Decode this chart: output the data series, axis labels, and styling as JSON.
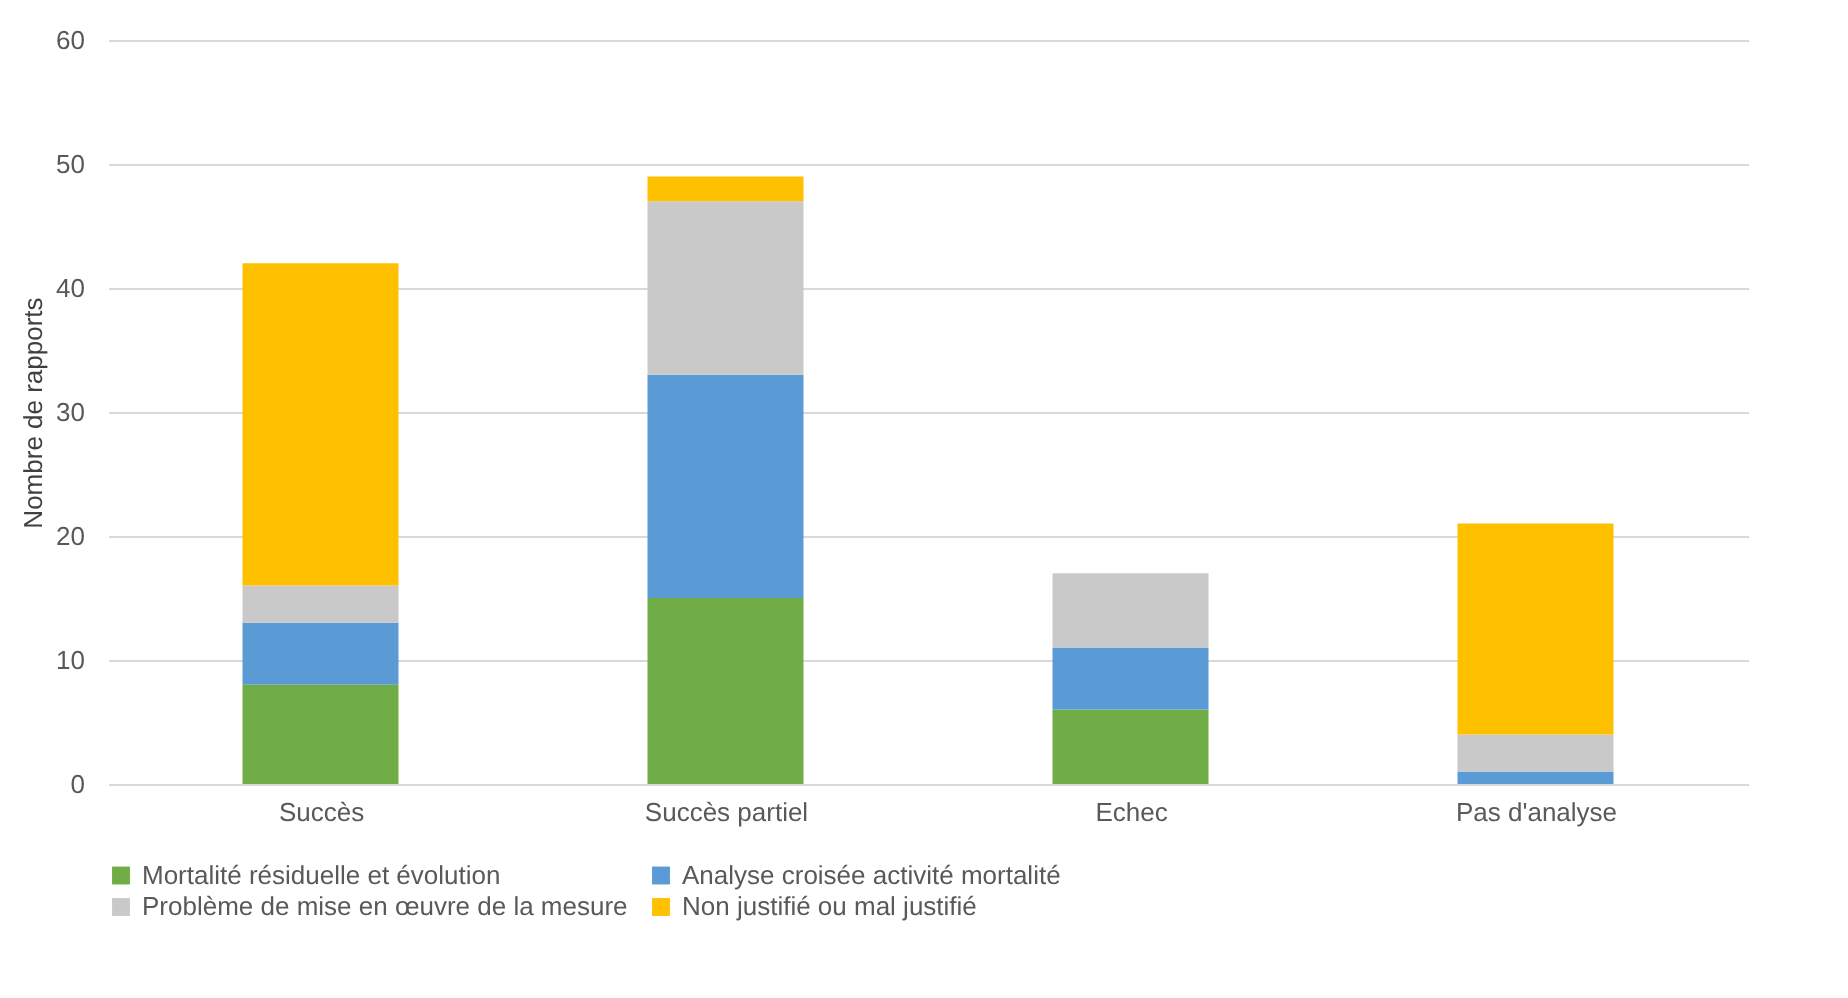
{
  "chart_data": {
    "type": "bar",
    "stacked": true,
    "ylabel": "Nombre de rapports",
    "categories": [
      "Succès",
      "Succès partiel",
      "Echec",
      "Pas d'analyse"
    ],
    "series": [
      {
        "name": "Mortalité résiduelle et évolution",
        "color": "#70ad47",
        "values": [
          8,
          15,
          6,
          0
        ]
      },
      {
        "name": "Analyse croisée activité mortalité",
        "color": "#5b9bd5",
        "values": [
          5,
          18,
          5,
          1
        ]
      },
      {
        "name": "Problème de mise en œuvre de la mesure",
        "color": "#c9c9c9",
        "values": [
          3,
          14,
          6,
          3
        ]
      },
      {
        "name": "Non justifié ou mal justifié",
        "color": "#ffc000",
        "values": [
          26,
          2,
          0,
          17
        ]
      }
    ],
    "ylim": [
      0,
      60
    ],
    "yticks": [
      0,
      10,
      20,
      30,
      40,
      50,
      60
    ],
    "grid": "y",
    "legend": "bottom"
  }
}
